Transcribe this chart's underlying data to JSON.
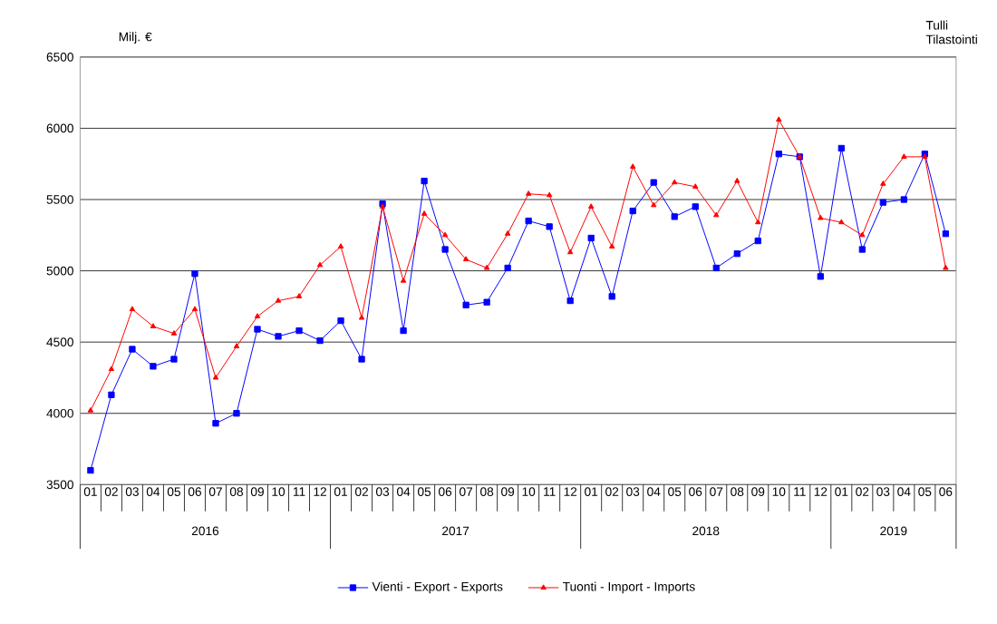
{
  "chart_data": {
    "type": "line",
    "ylabel": "Milj. €",
    "categories": [
      "01",
      "02",
      "03",
      "04",
      "05",
      "06",
      "07",
      "08",
      "09",
      "10",
      "11",
      "12",
      "01",
      "02",
      "03",
      "04",
      "05",
      "06",
      "07",
      "08",
      "09",
      "10",
      "11",
      "12",
      "01",
      "02",
      "03",
      "04",
      "05",
      "06",
      "07",
      "08",
      "09",
      "10",
      "11",
      "12",
      "01",
      "02",
      "03",
      "04",
      "05",
      "06"
    ],
    "series": [
      {
        "name": "Vienti - Export - Exports",
        "color": "#0000ff",
        "marker": "square",
        "values": [
          3600,
          4130,
          4450,
          4330,
          4380,
          4980,
          3930,
          4000,
          4590,
          4540,
          4580,
          4510,
          4650,
          4380,
          5470,
          4580,
          5630,
          5150,
          4760,
          4780,
          5020,
          5350,
          5310,
          4790,
          5230,
          4820,
          5420,
          5620,
          5380,
          5450,
          5020,
          5120,
          5210,
          5820,
          5800,
          4960,
          5860,
          5150,
          5480,
          5500,
          5820,
          5260
        ]
      },
      {
        "name": "Tuonti - Import - Imports",
        "color": "#ff0000",
        "marker": "triangle",
        "values": [
          4020,
          4310,
          4730,
          4610,
          4560,
          4730,
          4250,
          4470,
          4680,
          4790,
          4820,
          5040,
          5170,
          4670,
          5450,
          4930,
          5400,
          5250,
          5080,
          5020,
          5260,
          5540,
          5530,
          5130,
          5450,
          5170,
          5730,
          5460,
          5620,
          5590,
          5390,
          5630,
          5340,
          6060,
          5800,
          5370,
          5340,
          5250,
          5610,
          5800,
          5800,
          5020
        ]
      }
    ],
    "ylim": [
      3500,
      6500
    ],
    "yticks": [
      3500,
      4000,
      4500,
      5000,
      5500,
      6000,
      6500
    ],
    "grid": "y",
    "legend": "bottom",
    "annotations": [
      "Tulli Tilastointi",
      "2016",
      "2017",
      "2018",
      "2019"
    ]
  }
}
